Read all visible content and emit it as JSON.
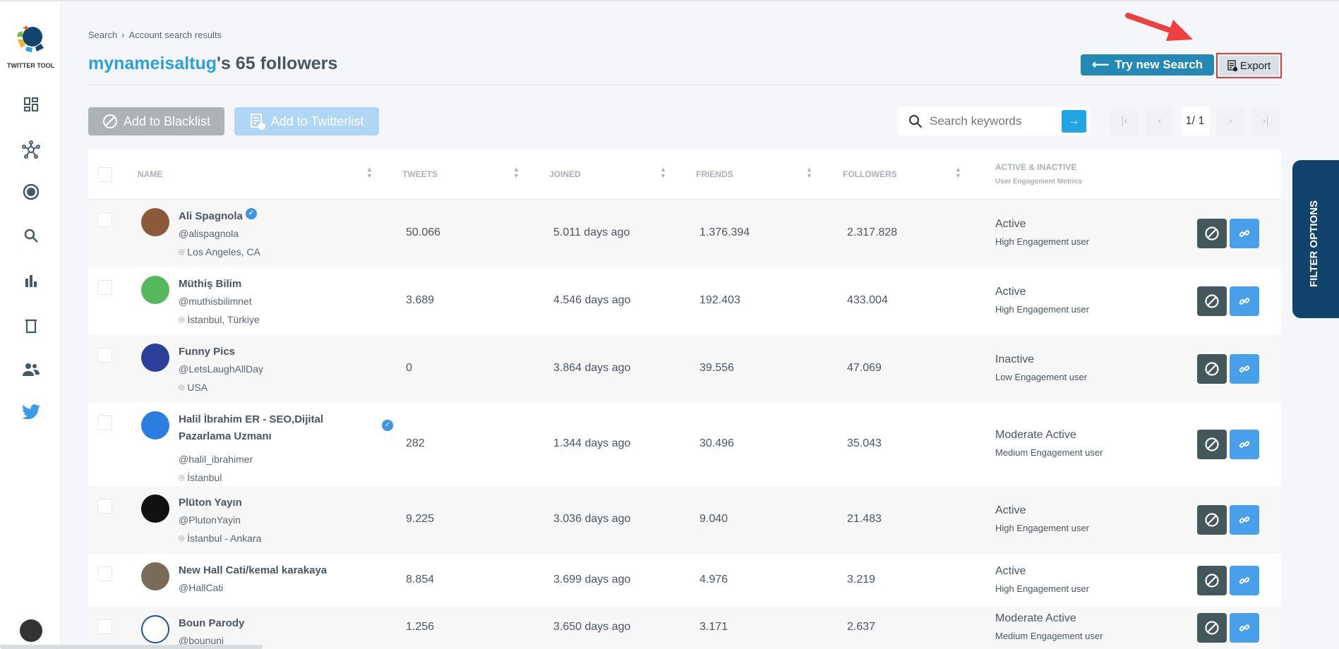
{
  "app": {
    "name": "TWITTER TOOL"
  },
  "breadcrumb": [
    "Search",
    "Account search results"
  ],
  "title": {
    "username": "mynameisaltug",
    "suffix": "'s 65 followers"
  },
  "actions": {
    "try_new_search": "Try new Search",
    "export": "Export",
    "add_blacklist": "Add to Blacklist",
    "add_twitterlist": "Add to Twitterlist"
  },
  "search": {
    "placeholder": "Search keywords"
  },
  "pagination": {
    "current": "1/ 1"
  },
  "filter_tab": "FILTER OPTIONS",
  "columns": {
    "name": "NAME",
    "tweets": "TWEETS",
    "joined": "JOINED",
    "friends": "FRIENDS",
    "followers": "FOLLOWERS",
    "activity": "ACTIVE & INACTIVE",
    "activity_sub": "User Engagement Metrics"
  },
  "rows": [
    {
      "name": "Ali Spagnola",
      "verified": true,
      "handle": "@alispagnola",
      "location": "Los Angeles, CA",
      "tweets": "50.066",
      "joined": "5.011 days ago",
      "friends": "1.376.394",
      "followers": "2.317.828",
      "status": "Active",
      "engagement": "High Engagement user"
    },
    {
      "name": "Müthiş Bilim",
      "verified": false,
      "handle": "@muthisbilimnet",
      "location": "İstanbul, Türkiye",
      "tweets": "3.689",
      "joined": "4.546 days ago",
      "friends": "192.403",
      "followers": "433.004",
      "status": "Active",
      "engagement": "High Engagement user"
    },
    {
      "name": "Funny Pics",
      "verified": false,
      "handle": "@LetsLaughAllDay",
      "location": "USA",
      "tweets": "0",
      "joined": "3.864 days ago",
      "friends": "39.556",
      "followers": "47.069",
      "status": "Inactive",
      "engagement": "Low Engagement user"
    },
    {
      "name": "Halil İbrahim ER - SEO,Dijital Pazarlama Uzmanı",
      "verified": true,
      "handle": "@halil_ibrahimer",
      "location": "İstanbul",
      "tweets": "282",
      "joined": "1.344 days ago",
      "friends": "30.496",
      "followers": "35.043",
      "status": "Moderate Active",
      "engagement": "Medium Engagement user"
    },
    {
      "name": "Plüton Yayın",
      "verified": false,
      "handle": "@PlutonYayin",
      "location": "İstanbul - Ankara",
      "tweets": "9.225",
      "joined": "3.036 days ago",
      "friends": "9.040",
      "followers": "21.483",
      "status": "Active",
      "engagement": "High Engagement user"
    },
    {
      "name": "New Hall Cati/kemal karakaya",
      "verified": false,
      "handle": "@HallCati",
      "location": "",
      "tweets": "8.854",
      "joined": "3.699 days ago",
      "friends": "4.976",
      "followers": "3.219",
      "status": "Active",
      "engagement": "High Engagement user"
    },
    {
      "name": "Boun Parody",
      "verified": false,
      "handle": "@boununi",
      "location": "",
      "tweets": "1.256",
      "joined": "3.650 days ago",
      "friends": "3.171",
      "followers": "2.637",
      "status": "Moderate Active",
      "engagement": "Medium Engagement user"
    }
  ],
  "colors": {
    "accent": "#2aa0dc",
    "try_button": "#2589b8",
    "block_button": "#43575d",
    "link_button": "#4a9fea",
    "filter_tab": "#11426b",
    "highlight": "#e53935"
  }
}
